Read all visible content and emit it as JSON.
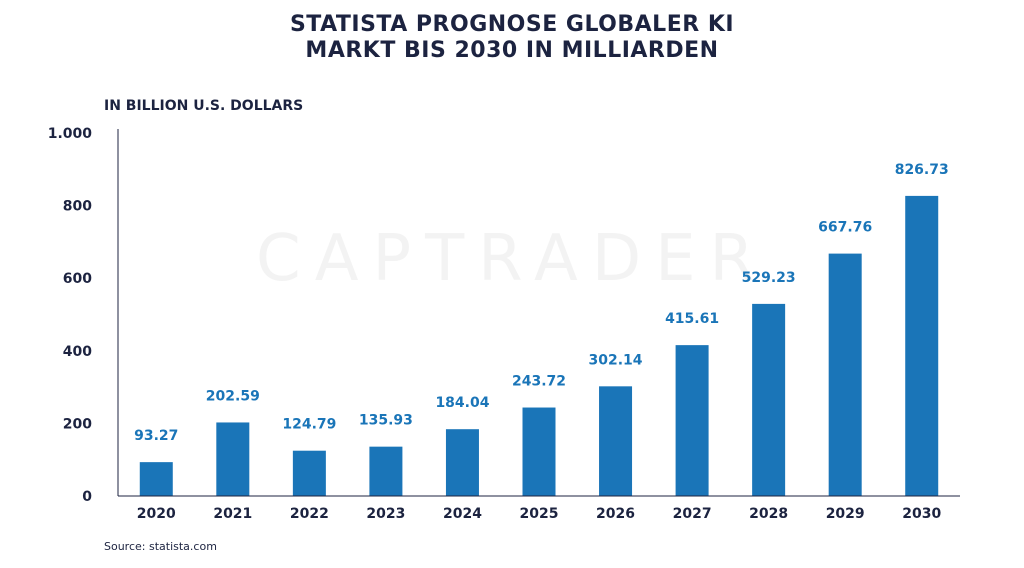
{
  "header": {
    "title_line1": "STATISTA PROGNOSE GLOBALER KI",
    "title_line2": "MARKT BIS 2030 IN MILLIARDEN"
  },
  "watermark": "CAPTRADER",
  "source": "Source: statista.com",
  "colors": {
    "bar": "#1a75b8",
    "label": "#1a75b8",
    "text": "#1c2340"
  },
  "chart_data": {
    "type": "bar",
    "title": "STATISTA PROGNOSE GLOBALER KI MARKT BIS 2030 IN MILLIARDEN",
    "ylabel": "IN BILLION U.S. DOLLARS",
    "xlabel": "",
    "categories": [
      "2020",
      "2021",
      "2022",
      "2023",
      "2024",
      "2025",
      "2026",
      "2027",
      "2028",
      "2029",
      "2030"
    ],
    "values": [
      93.27,
      202.59,
      124.79,
      135.93,
      184.04,
      243.72,
      302.14,
      415.61,
      529.23,
      667.76,
      826.73
    ],
    "data_labels": [
      "93.27",
      "202.59",
      "124.79",
      "135.93",
      "184.04",
      "243.72",
      "302.14",
      "415.61",
      "529.23",
      "667.76",
      "826.73"
    ],
    "ylim": [
      0,
      1000
    ],
    "yticks": [
      0,
      200,
      400,
      600,
      800,
      1000
    ],
    "ytick_labels": [
      "0",
      "200",
      "400",
      "600",
      "800",
      "1.000"
    ],
    "grid": false,
    "legend": "none"
  }
}
